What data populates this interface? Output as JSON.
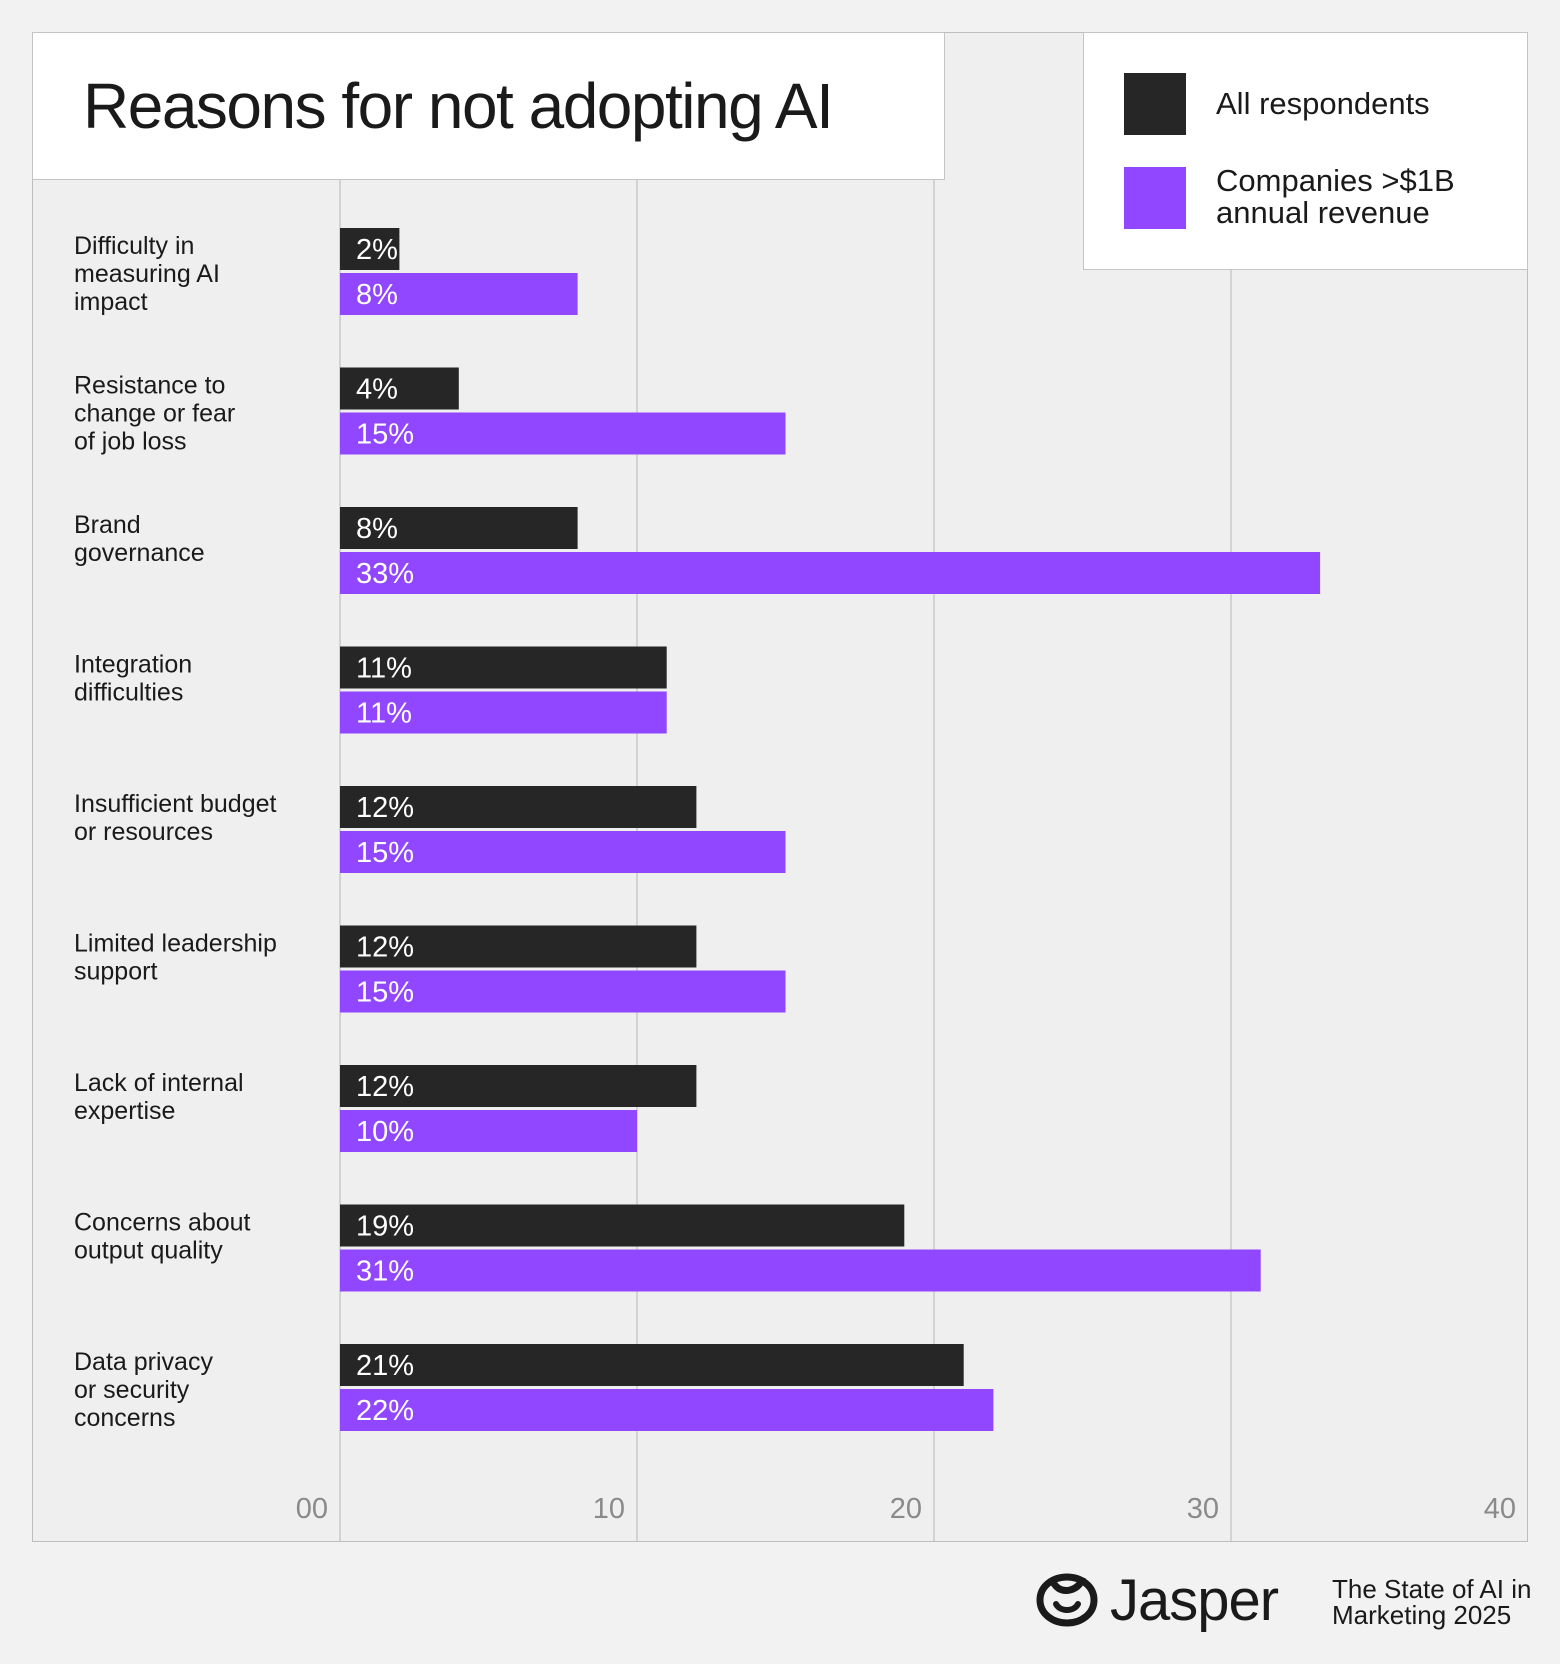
{
  "colors": {
    "all_respondents": "#262626",
    "large_companies": "#9146ff",
    "grid": "#c0c0c0",
    "tick": "#8a8a8a"
  },
  "brand": {
    "name": "Jasper",
    "report": "The State of AI in\nMarketing 2025",
    "icon": "jasper-face-icon"
  },
  "chart_data": {
    "type": "bar",
    "orientation": "horizontal",
    "title": "Reasons for not adopting AI",
    "categories": [
      "Difficulty in\nmeasuring AI\nimpact",
      "Resistance to\nchange or fear\nof job loss",
      "Brand\ngovernance",
      "Integration\ndifficulties",
      "Insufficient budget\nor resources",
      "Limited leadership\nsupport",
      "Lack of internal\nexpertise",
      "Concerns about\noutput quality",
      "Data privacy\nor security\nconcerns"
    ],
    "series": [
      {
        "name": "All respondents",
        "values": [
          2,
          4,
          8,
          11,
          12,
          12,
          12,
          19,
          21
        ],
        "labels": [
          "2%",
          "4%",
          "8%",
          "11%",
          "12%",
          "12%",
          "12%",
          "19%",
          "21%"
        ]
      },
      {
        "name": "Companies >$1B\nannual revenue",
        "values": [
          8,
          15,
          33,
          11,
          15,
          15,
          10,
          31,
          22
        ],
        "labels": [
          "8%",
          "15%",
          "33%",
          "11%",
          "15%",
          "15%",
          "10%",
          "31%",
          "22%"
        ]
      }
    ],
    "x_ticks": [
      "00",
      "10",
      "20",
      "30",
      "40"
    ],
    "x_tick_values": [
      0,
      10,
      20,
      30,
      40
    ],
    "xlim": [
      0,
      40
    ],
    "grid": true,
    "legend_position": "top-right"
  }
}
